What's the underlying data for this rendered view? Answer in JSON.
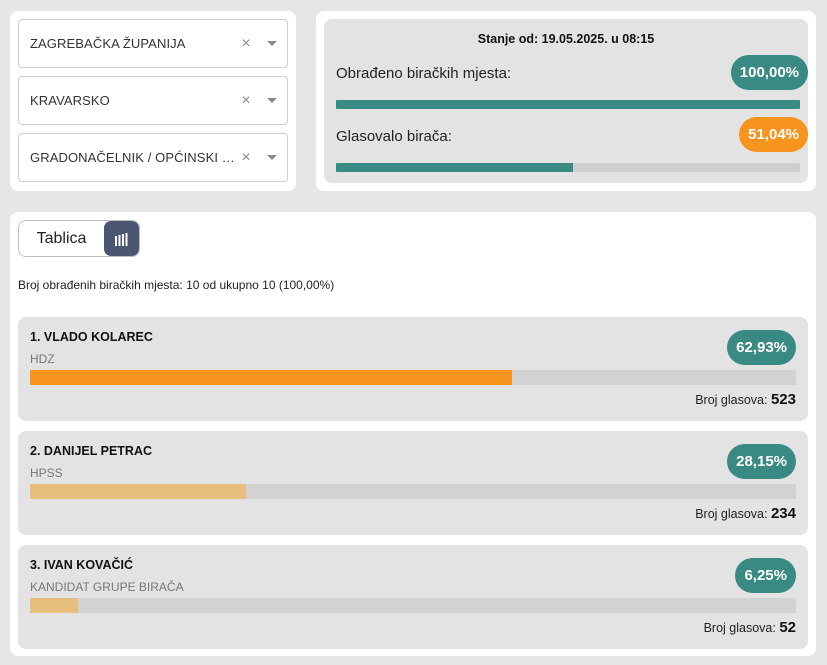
{
  "filters": {
    "county": "ZAGREBAČKA ŽUPANIJA",
    "municipality": "KRAVARSKO",
    "election": "GRADONAČELNIK / OPĆINSKI NAČELNIK",
    "clear_glyph": "×"
  },
  "status": {
    "stanje": "Stanje od: 19.05.2025. u 08:15",
    "processed_label": "Obrađeno biračkih mjesta:",
    "processed_value": "100,00%",
    "processed_percent": 100,
    "turnout_label": "Glasovalo birača:",
    "turnout_value": "51,04%",
    "turnout_percent": 51.04
  },
  "view_toggle": {
    "table_label": "Tablica",
    "chart_icon": "bar-chart-icon"
  },
  "summary": "Broj obrađenih biračkih mjesta: 10 od ukupno 10 (100,00%)",
  "votes_label": "Broj glasova:",
  "colors": {
    "teal": "#3a8a84",
    "orange": "#f7941d",
    "light_orange": "#e8be7e",
    "toggle_dark": "#4a5672"
  },
  "candidates": [
    {
      "name": "1. VLADO KOLAREC",
      "party": "HDZ",
      "percent_label": "62,93%",
      "percent": 62.93,
      "votes": "523",
      "bar_color": "#f7941d"
    },
    {
      "name": "2. DANIJEL PETRAC",
      "party": "HPSS",
      "percent_label": "28,15%",
      "percent": 28.15,
      "votes": "234",
      "bar_color": "#e8be7e"
    },
    {
      "name": "3. IVAN KOVAČIĆ",
      "party": "KANDIDAT GRUPE BIRAČA",
      "percent_label": "6,25%",
      "percent": 6.25,
      "votes": "52",
      "bar_color": "#e8be7e"
    }
  ]
}
